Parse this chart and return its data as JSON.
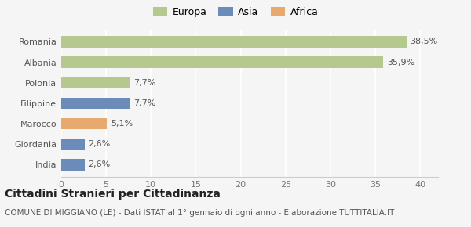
{
  "categories": [
    "India",
    "Giordania",
    "Marocco",
    "Filippine",
    "Polonia",
    "Albania",
    "Romania"
  ],
  "values": [
    2.6,
    2.6,
    5.1,
    7.7,
    7.7,
    35.9,
    38.5
  ],
  "bar_colors": [
    "#6b8cba",
    "#6b8cba",
    "#e8a96e",
    "#6b8cba",
    "#b5c98e",
    "#b5c98e",
    "#b5c98e"
  ],
  "labels": [
    "2,6%",
    "2,6%",
    "5,1%",
    "7,7%",
    "7,7%",
    "35,9%",
    "38,5%"
  ],
  "legend_items": [
    {
      "label": "Europa",
      "color": "#b5c98e"
    },
    {
      "label": "Asia",
      "color": "#6b8cba"
    },
    {
      "label": "Africa",
      "color": "#e8a96e"
    }
  ],
  "xlim": [
    0,
    42
  ],
  "xticks": [
    0,
    5,
    10,
    15,
    20,
    25,
    30,
    35,
    40
  ],
  "title": "Cittadini Stranieri per Cittadinanza",
  "subtitle": "COMUNE DI MIGGIANO (LE) - Dati ISTAT al 1° gennaio di ogni anno - Elaborazione TUTTITALIA.IT",
  "background_color": "#f5f5f5",
  "bar_height": 0.55,
  "grid_color": "#ffffff",
  "title_fontsize": 10,
  "subtitle_fontsize": 7.5,
  "tick_fontsize": 8,
  "label_fontsize": 8
}
